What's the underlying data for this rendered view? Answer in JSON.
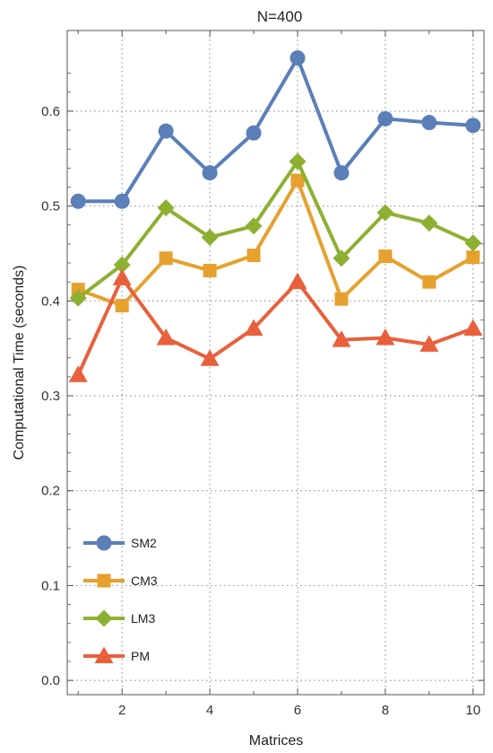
{
  "chart_data": {
    "type": "line",
    "title": "N=400",
    "xlabel": "Matrices",
    "ylabel": "Computational Time (seconds)",
    "x": [
      1,
      2,
      3,
      4,
      5,
      6,
      7,
      8,
      9,
      10
    ],
    "xlim": [
      0.75,
      10.25
    ],
    "ylim": [
      -0.015,
      0.685
    ],
    "xticks": [
      2,
      4,
      6,
      8,
      10
    ],
    "yticks": [
      0.0,
      0.1,
      0.2,
      0.3,
      0.4,
      0.5,
      0.6
    ],
    "ytick_labels": [
      "0.0",
      "0.1",
      "0.2",
      "0.3",
      "0.4",
      "0.5",
      "0.6"
    ],
    "grid": true,
    "legend_position": "bottom-left",
    "series": [
      {
        "name": "SM2",
        "color": "#5B7FB8",
        "marker": "circle",
        "values": [
          0.505,
          0.505,
          0.579,
          0.535,
          0.577,
          0.656,
          0.535,
          0.592,
          0.588,
          0.585
        ]
      },
      {
        "name": "CM3",
        "color": "#E6A12E",
        "marker": "square",
        "values": [
          0.412,
          0.395,
          0.445,
          0.432,
          0.448,
          0.527,
          0.402,
          0.447,
          0.42,
          0.446
        ]
      },
      {
        "name": "LM3",
        "color": "#8DB032",
        "marker": "diamond",
        "values": [
          0.403,
          0.438,
          0.498,
          0.467,
          0.479,
          0.547,
          0.445,
          0.493,
          0.482,
          0.461
        ]
      },
      {
        "name": "PM",
        "color": "#E8603C",
        "marker": "triangle",
        "values": [
          0.322,
          0.424,
          0.361,
          0.339,
          0.371,
          0.42,
          0.359,
          0.361,
          0.354,
          0.371
        ]
      }
    ]
  }
}
